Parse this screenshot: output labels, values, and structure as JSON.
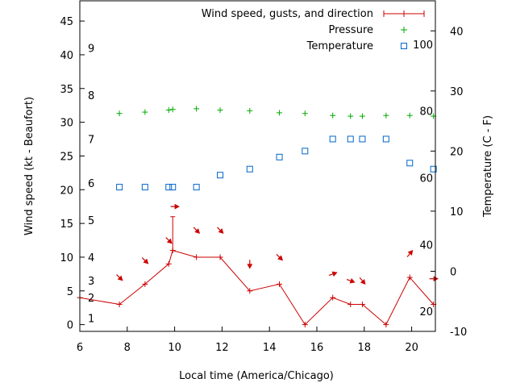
{
  "chart_data": {
    "type": "line",
    "xlabel": "Local time (America/Chicago)",
    "ylabel": "Wind speed (kt - Beaufort)",
    "y2label": "Temperature (C - F)",
    "xlim": [
      6,
      21
    ],
    "ylim": [
      -1,
      48
    ],
    "y2lim": [
      -10,
      45
    ],
    "x_ticks": [
      6,
      8,
      10,
      12,
      14,
      16,
      18,
      20
    ],
    "y_ticks": [
      0,
      5,
      10,
      15,
      20,
      25,
      30,
      35,
      40,
      45
    ],
    "y2_ticks": [
      -10,
      0,
      10,
      20,
      30,
      40
    ],
    "x_tick_labels": [
      "6",
      "8",
      "10",
      "12",
      "14",
      "16",
      "18",
      "20"
    ],
    "y_tick_labels": [
      "0",
      "5",
      "10",
      "15",
      "20",
      "25",
      "30",
      "35",
      "40",
      "45"
    ],
    "y2_tick_labels": [
      "-10",
      "0",
      "10",
      "20",
      "30",
      "40"
    ],
    "legend_position": "top-right",
    "grid": false,
    "series": [
      {
        "name": "Wind speed, gusts, and direction",
        "color": "#cc0000",
        "marker": "plus-line",
        "x": [
          6.0,
          7.67,
          8.75,
          9.75,
          9.92,
          10.92,
          11.92,
          13.17,
          14.42,
          15.5,
          16.67,
          17.42,
          17.92,
          18.92,
          19.92,
          20.92
        ],
        "values": [
          4,
          3,
          6,
          9,
          11,
          10,
          10,
          5,
          6,
          0,
          4,
          3,
          3,
          0,
          7,
          3
        ],
        "gust": {
          "x": 9.92,
          "from": 11,
          "to": 16
        }
      },
      {
        "name": "Pressure",
        "color": "#00aa00",
        "marker": "plus",
        "x": [
          7.67,
          8.75,
          9.75,
          9.92,
          10.92,
          11.92,
          13.17,
          14.42,
          15.5,
          16.67,
          17.42,
          17.92,
          18.92,
          19.92,
          20.92
        ],
        "values": [
          31.3,
          31.5,
          31.8,
          31.9,
          32.0,
          31.8,
          31.7,
          31.4,
          31.3,
          31.0,
          30.9,
          30.9,
          31.0,
          31.0,
          30.9
        ]
      },
      {
        "name": "Temperature",
        "color": "#0066cc",
        "marker": "square",
        "x": [
          7.67,
          8.75,
          9.75,
          9.92,
          10.92,
          11.92,
          13.17,
          14.42,
          15.5,
          16.67,
          17.42,
          17.92,
          18.92,
          19.92,
          20.92
        ],
        "values_y2": [
          14,
          14,
          14,
          14,
          14,
          16,
          17,
          19,
          20,
          22,
          22,
          22,
          22,
          18,
          17
        ]
      }
    ],
    "wind_arrows": {
      "color": "#cc0000",
      "points": [
        {
          "x": 7.67,
          "y": 7.0,
          "dir": 315
        },
        {
          "x": 8.75,
          "y": 9.5,
          "dir": 315
        },
        {
          "x": 9.75,
          "y": 12.5,
          "dir": 315
        },
        {
          "x": 10.0,
          "y": 17.5,
          "dir": 270
        },
        {
          "x": 10.92,
          "y": 14.0,
          "dir": 315
        },
        {
          "x": 11.92,
          "y": 14.0,
          "dir": 315
        },
        {
          "x": 13.17,
          "y": 9.0,
          "dir": 0
        },
        {
          "x": 14.42,
          "y": 10.0,
          "dir": 315
        },
        {
          "x": 16.67,
          "y": 7.5,
          "dir": 250
        },
        {
          "x": 17.42,
          "y": 6.5,
          "dir": 290
        },
        {
          "x": 17.92,
          "y": 6.5,
          "dir": 320
        },
        {
          "x": 19.92,
          "y": 10.5,
          "dir": 220
        },
        {
          "x": 20.92,
          "y": 6.8,
          "dir": 270
        }
      ]
    },
    "beaufort_labels": [
      {
        "text": "1",
        "y": 1.0
      },
      {
        "text": "2",
        "y": 4.0
      },
      {
        "text": "3",
        "y": 6.5
      },
      {
        "text": "4",
        "y": 10.0
      },
      {
        "text": "5",
        "y": 15.5
      },
      {
        "text": "6",
        "y": 21.0
      },
      {
        "text": "7",
        "y": 27.5
      },
      {
        "text": "8",
        "y": 34.0
      },
      {
        "text": "9",
        "y": 41.0
      }
    ],
    "fahrenheit_labels": [
      {
        "text": "20",
        "y2": -6.67
      },
      {
        "text": "40",
        "y2": 4.44
      },
      {
        "text": "60",
        "y2": 15.56
      },
      {
        "text": "80",
        "y2": 26.67
      },
      {
        "text": "100",
        "y2": 37.78
      }
    ]
  }
}
